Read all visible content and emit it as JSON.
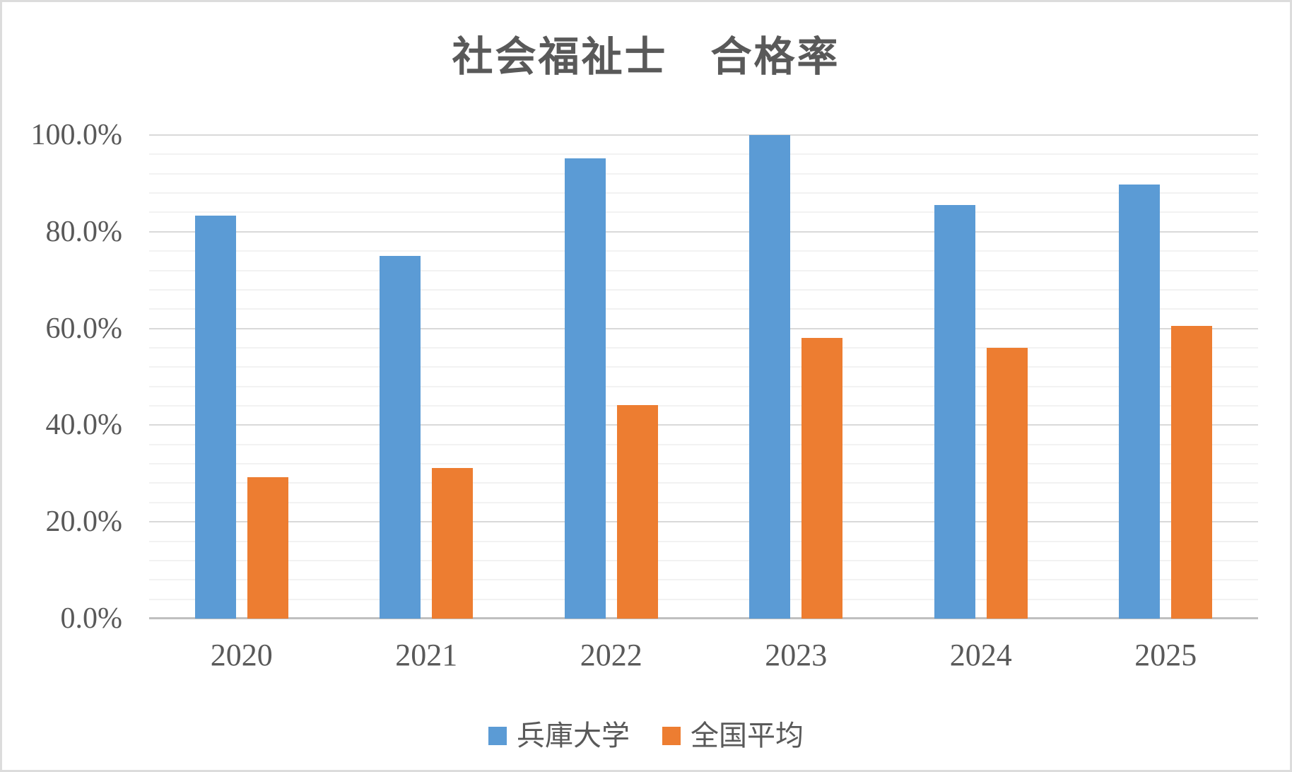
{
  "chart_data": {
    "type": "bar",
    "title": "社会福祉士　合格率",
    "categories": [
      "2020",
      "2021",
      "2022",
      "2023",
      "2024",
      "2025"
    ],
    "series": [
      {
        "name": "兵庫大学",
        "color": "#5B9BD5",
        "values": [
          83.3,
          75.0,
          95.2,
          100.0,
          85.5,
          89.7
        ]
      },
      {
        "name": "全国平均",
        "color": "#ED7D31",
        "values": [
          29.3,
          31.1,
          44.2,
          58.1,
          56.0,
          60.6
        ]
      }
    ],
    "ylabel": "",
    "xlabel": "",
    "ylim": [
      0,
      100
    ],
    "y_major_unit": 20,
    "y_minor_unit": 4,
    "y_tick_labels": [
      "0.0%",
      "20.0%",
      "40.0%",
      "60.0%",
      "80.0%",
      "100.0%"
    ],
    "grid": "horizontal major+minor",
    "legend_position": "bottom-center"
  },
  "colors": {
    "background": "#FFFFFF",
    "chart_border": "#DCDCDC",
    "title_text": "#595959",
    "axis_text": "#595959",
    "major_gridline": "#D9D9D9",
    "minor_gridline": "#F2F2F2",
    "axis_line": "#BFBFBF"
  }
}
